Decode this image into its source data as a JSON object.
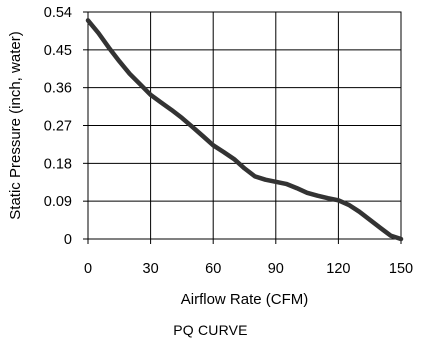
{
  "chart_data": {
    "type": "line",
    "title": "PQ CURVE",
    "xlabel": "Airflow Rate (CFM)",
    "ylabel": "Static Pressure (inch, water)",
    "xlim": [
      0,
      150
    ],
    "ylim": [
      0,
      0.54
    ],
    "x_ticks": [
      "0",
      "30",
      "60",
      "90",
      "120",
      "150"
    ],
    "y_ticks": [
      "0",
      "0.09",
      "0.18",
      "0.27",
      "0.36",
      "0.45",
      "0.54"
    ],
    "grid": true,
    "legend": "none",
    "line_color": "#333333",
    "series": [
      {
        "x": [
          0,
          5,
          10,
          15,
          20,
          25,
          30,
          35,
          40,
          45,
          50,
          55,
          60,
          65,
          70,
          75,
          80,
          85,
          90,
          95,
          100,
          105,
          110,
          115,
          120,
          125,
          130,
          135,
          140,
          145,
          150
        ],
        "y": [
          0.52,
          0.49,
          0.455,
          0.423,
          0.393,
          0.368,
          0.343,
          0.325,
          0.307,
          0.288,
          0.267,
          0.245,
          0.223,
          0.207,
          0.19,
          0.168,
          0.149,
          0.141,
          0.136,
          0.131,
          0.121,
          0.11,
          0.103,
          0.097,
          0.092,
          0.081,
          0.065,
          0.046,
          0.027,
          0.008,
          0
        ]
      }
    ]
  }
}
